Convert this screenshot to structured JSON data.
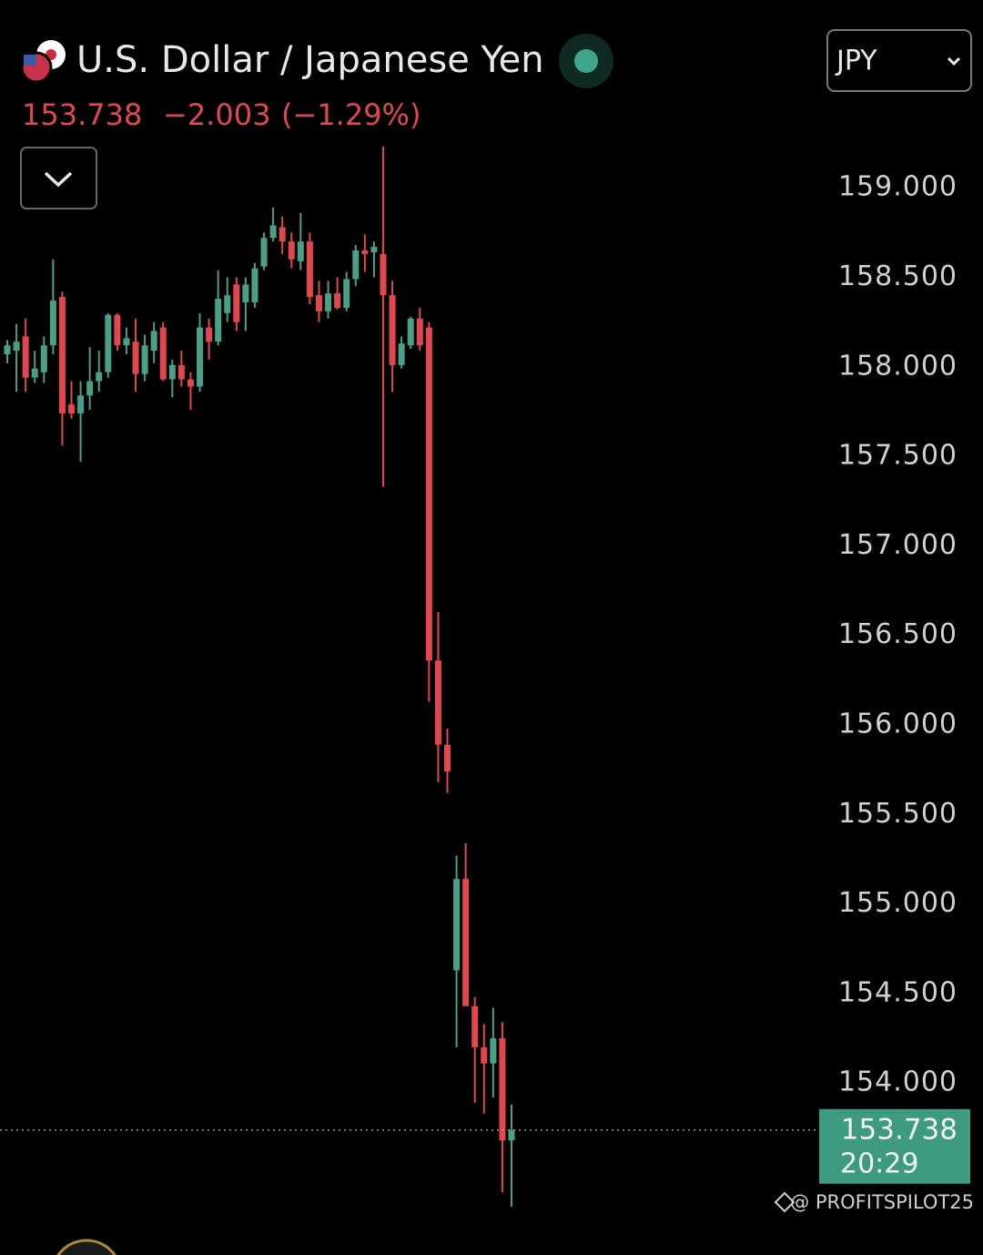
{
  "chart_data": {
    "type": "candlestick",
    "title": "U.S. Dollar / Japanese Yen",
    "currency": "JPY",
    "last_price": 153.738,
    "change": {
      "value": -2.003,
      "label": "−2.003"
    },
    "change_percent": {
      "value": -1.29,
      "label": "(−1.29%)"
    },
    "time": "20:29",
    "watermark": "@ PROFITSPILOT25",
    "up_color": "#4a9f87",
    "down_color": "#e2474f",
    "price_box_color": "#3f9a82",
    "ylim": [
      153.04,
      159.54
    ],
    "yticks": [
      {
        "value": 159,
        "label": "159.000"
      },
      {
        "value": 158.5,
        "label": "158.500"
      },
      {
        "value": 158,
        "label": "158.000"
      },
      {
        "value": 157.5,
        "label": "157.500"
      },
      {
        "value": 157,
        "label": "157.000"
      },
      {
        "value": 156.5,
        "label": "156.500"
      },
      {
        "value": 156,
        "label": "156.000"
      },
      {
        "value": 155.5,
        "label": "155.500"
      },
      {
        "value": 155,
        "label": "155.000"
      },
      {
        "value": 154.5,
        "label": "154.500"
      },
      {
        "value": 154,
        "label": "154.000"
      }
    ],
    "open": [
      158.07,
      158.09,
      158.17,
      157.94,
      157.97,
      158.12,
      158.39,
      157.79,
      157.74,
      157.84,
      157.92,
      157.97,
      158.29,
      158.12,
      158.14,
      157.96,
      158.09,
      158.22,
      157.93,
      158.01,
      157.93,
      157.89,
      158.22,
      158.14,
      158.3,
      158.46,
      158.36,
      158.36,
      158.56,
      158.72,
      158.78,
      158.7,
      158.59,
      158.7,
      158.4,
      158.31,
      158.41,
      158.33,
      158.49,
      158.65,
      158.64,
      158.63,
      158.4,
      158.01,
      158.12,
      158.27,
      158.22,
      156.36,
      155.89,
      154.63,
      155.14,
      154.43,
      154.2,
      154.11,
      154.25,
      153.68
    ],
    "high": [
      158.15,
      158.24,
      158.27,
      158.09,
      158.17,
      158.6,
      158.42,
      157.92,
      157.92,
      158.11,
      158.09,
      158.3,
      158.3,
      158.22,
      158.27,
      158.18,
      158.25,
      158.25,
      158.04,
      158.09,
      157.97,
      158.3,
      158.27,
      158.54,
      158.5,
      158.5,
      158.5,
      158.58,
      158.75,
      158.89,
      158.84,
      158.75,
      158.86,
      158.75,
      158.48,
      158.48,
      158.5,
      158.53,
      158.68,
      158.74,
      158.7,
      159.23,
      158.48,
      158.17,
      158.28,
      158.33,
      158.25,
      156.63,
      155.98,
      155.27,
      155.34,
      154.48,
      154.33,
      154.42,
      154.34,
      153.88
    ],
    "low": [
      158.02,
      157.86,
      157.86,
      157.91,
      157.91,
      158.07,
      157.56,
      157.71,
      157.47,
      157.76,
      157.86,
      157.94,
      158.09,
      158.07,
      157.86,
      157.92,
      158.02,
      157.92,
      157.83,
      157.89,
      157.76,
      157.86,
      158.04,
      158.12,
      158.25,
      158.2,
      158.2,
      158.33,
      158.54,
      158.7,
      158.63,
      158.55,
      158.54,
      158.35,
      158.25,
      158.27,
      158.32,
      158.31,
      158.45,
      158.53,
      158.5,
      157.33,
      157.86,
      157.99,
      158.1,
      158.09,
      156.13,
      155.68,
      155.62,
      154.2,
      154.43,
      153.89,
      153.83,
      153.92,
      153.39,
      153.31
    ],
    "close": [
      158.12,
      158.14,
      157.94,
      157.99,
      158.12,
      158.37,
      157.74,
      157.74,
      157.84,
      157.92,
      157.97,
      158.29,
      158.12,
      158.16,
      157.96,
      158.12,
      158.2,
      157.93,
      158.01,
      157.93,
      157.89,
      158.22,
      158.14,
      158.38,
      158.4,
      158.25,
      158.46,
      158.55,
      158.72,
      158.79,
      158.7,
      158.6,
      158.7,
      158.39,
      158.31,
      158.41,
      158.33,
      158.49,
      158.65,
      158.63,
      158.67,
      158.4,
      158.01,
      158.13,
      158.27,
      158.12,
      156.36,
      155.89,
      155.74,
      155.14,
      154.43,
      154.2,
      154.11,
      154.25,
      153.68,
      153.738
    ]
  }
}
